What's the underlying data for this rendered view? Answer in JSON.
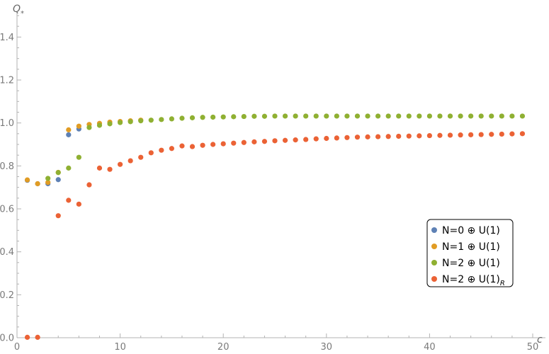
{
  "chart_data": {
    "type": "scatter",
    "xlabel": "c",
    "ylabel": "Q",
    "ylabel_sub": "*",
    "xlim": [
      0,
      50
    ],
    "ylim": [
      0,
      1.5
    ],
    "x_ticks": [
      0,
      10,
      20,
      30,
      40,
      50
    ],
    "y_ticks": [
      0.0,
      0.2,
      0.4,
      0.6,
      0.8,
      1.0,
      1.2,
      1.4
    ],
    "x_tick_labels": [
      "0",
      "10",
      "20",
      "30",
      "40",
      "50"
    ],
    "y_tick_labels": [
      "0.0",
      "0.2",
      "0.4",
      "0.6",
      "0.8",
      "1.0",
      "1.2",
      "1.4"
    ],
    "grid": false,
    "legend_position": "right",
    "series": [
      {
        "name": "N=0 ⊕ U(1)",
        "color": "#5e81b5",
        "x": [
          1,
          2,
          3,
          4,
          5,
          6
        ],
        "y": [
          0.733,
          0.717,
          0.717,
          0.736,
          0.945,
          0.972
        ]
      },
      {
        "name": "N=1 ⊕ U(1)",
        "color": "#e19c24",
        "x": [
          1,
          2,
          3,
          4,
          5,
          6,
          7,
          8,
          9,
          10,
          11,
          12
        ],
        "y": [
          0.735,
          0.717,
          0.723,
          0.77,
          0.968,
          0.985,
          0.993,
          0.998,
          1.004,
          1.007,
          1.01,
          1.013
        ]
      },
      {
        "name": "N=2 ⊕ U(1)",
        "color": "#8fb032",
        "x": [
          3,
          4,
          5,
          6,
          7,
          8,
          9,
          10,
          11,
          12,
          13,
          14,
          15,
          16,
          17,
          18,
          19,
          20,
          21,
          22,
          23,
          24,
          25,
          26,
          27,
          28,
          29,
          30,
          31,
          32,
          33,
          34,
          35,
          36,
          37,
          38,
          39,
          40,
          41,
          42,
          43,
          44,
          45,
          46,
          47,
          48,
          49
        ],
        "y": [
          0.742,
          0.769,
          0.79,
          0.84,
          0.979,
          0.989,
          0.996,
          1.002,
          1.006,
          1.01,
          1.013,
          1.016,
          1.019,
          1.022,
          1.024,
          1.026,
          1.027,
          1.028,
          1.029,
          1.03,
          1.031,
          1.031,
          1.032,
          1.032,
          1.032,
          1.032,
          1.032,
          1.032,
          1.032,
          1.032,
          1.032,
          1.032,
          1.032,
          1.032,
          1.032,
          1.032,
          1.032,
          1.032,
          1.032,
          1.032,
          1.032,
          1.032,
          1.032,
          1.032,
          1.032,
          1.032,
          1.032
        ]
      },
      {
        "name": "N=2 ⊕ U(1)",
        "name_sub": "R",
        "color": "#eb6235",
        "x": [
          1,
          2,
          4,
          5,
          6,
          7,
          8,
          9,
          10,
          11,
          12,
          13,
          14,
          15,
          16,
          17,
          18,
          19,
          20,
          21,
          22,
          23,
          24,
          25,
          26,
          27,
          28,
          29,
          30,
          31,
          32,
          33,
          34,
          35,
          36,
          37,
          38,
          39,
          40,
          41,
          42,
          43,
          44,
          45,
          46,
          47,
          48,
          49
        ],
        "y": [
          0.002,
          0.002,
          0.568,
          0.64,
          0.622,
          0.712,
          0.79,
          0.784,
          0.807,
          0.824,
          0.84,
          0.861,
          0.873,
          0.881,
          0.893,
          0.89,
          0.896,
          0.9,
          0.903,
          0.906,
          0.909,
          0.912,
          0.914,
          0.917,
          0.919,
          0.921,
          0.923,
          0.926,
          0.928,
          0.93,
          0.932,
          0.934,
          0.935,
          0.936,
          0.937,
          0.938,
          0.939,
          0.94,
          0.941,
          0.942,
          0.943,
          0.944,
          0.945,
          0.946,
          0.947,
          0.948,
          0.949,
          0.95
        ]
      }
    ]
  }
}
